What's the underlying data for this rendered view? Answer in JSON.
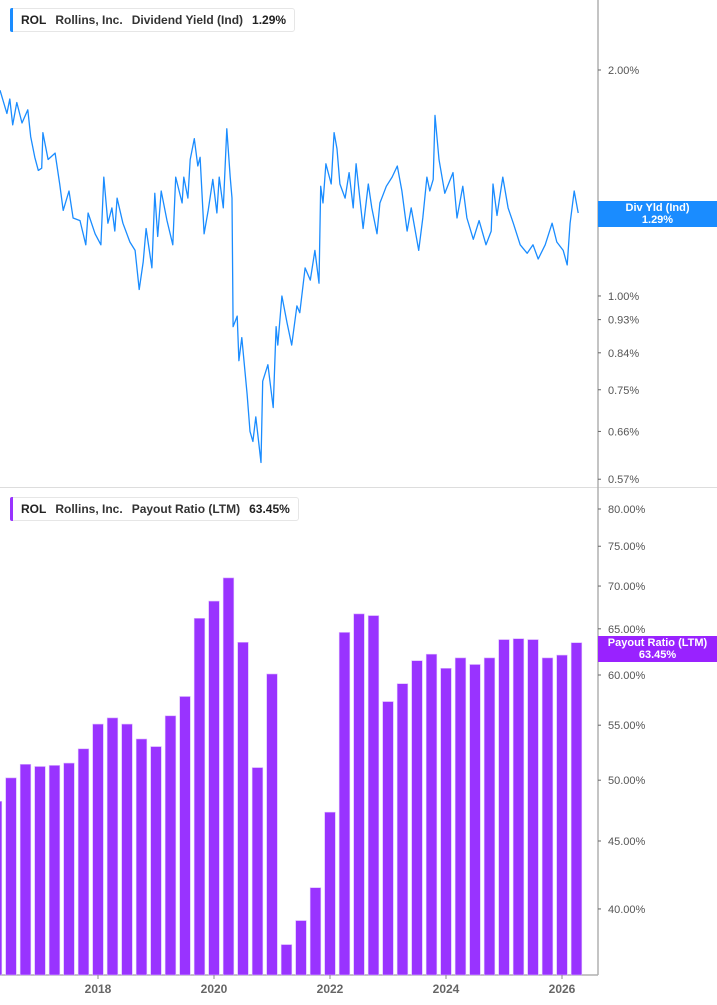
{
  "colors": {
    "dividend_yield": "#1a8cff",
    "payout_ratio": "#9933ff"
  },
  "top_legend": {
    "ticker": "ROL",
    "company": "Rollins, Inc.",
    "metric": "Dividend Yield (Ind)",
    "value": "1.29%"
  },
  "bottom_legend": {
    "ticker": "ROL",
    "company": "Rollins, Inc.",
    "metric": "Payout Ratio (LTM)",
    "value": "63.45%"
  },
  "top_tag": {
    "label": "Div Yld (Ind)",
    "value": "1.29%"
  },
  "bottom_tag": {
    "label": "Payout Ratio (LTM)",
    "value": "63.45%"
  },
  "chart_data": [
    {
      "type": "line",
      "series": [
        {
          "name": "Dividend Yield (Ind)",
          "x": [
            2016.31,
            2016.43,
            2016.48,
            2016.53,
            2016.6,
            2016.69,
            2016.79,
            2016.84,
            2016.91,
            2016.97,
            2017.03,
            2017.05,
            2017.14,
            2017.26,
            2017.34,
            2017.4,
            2017.5,
            2017.57,
            2017.69,
            2017.79,
            2017.83,
            2017.95,
            2018.05,
            2018.1,
            2018.17,
            2018.24,
            2018.29,
            2018.33,
            2018.43,
            2018.55,
            2018.64,
            2018.71,
            2018.78,
            2018.83,
            2018.93,
            2018.98,
            2019.03,
            2019.09,
            2019.19,
            2019.29,
            2019.34,
            2019.45,
            2019.48,
            2019.55,
            2019.59,
            2019.66,
            2019.72,
            2019.76,
            2019.83,
            2019.9,
            2019.98,
            2020.05,
            2020.09,
            2020.16,
            2020.22,
            2020.28,
            2020.31,
            2020.33,
            2020.4,
            2020.43,
            2020.48,
            2020.57,
            2020.62,
            2020.67,
            2020.72,
            2020.81,
            2020.84,
            2020.93,
            2021.02,
            2021.07,
            2021.1,
            2021.17,
            2021.26,
            2021.34,
            2021.43,
            2021.48,
            2021.57,
            2021.66,
            2021.74,
            2021.81,
            2021.84,
            2021.88,
            2021.93,
            2022.02,
            2022.07,
            2022.12,
            2022.17,
            2022.26,
            2022.33,
            2022.4,
            2022.45,
            2022.57,
            2022.66,
            2022.72,
            2022.81,
            2022.86,
            2022.97,
            2023.07,
            2023.16,
            2023.24,
            2023.33,
            2023.4,
            2023.53,
            2023.6,
            2023.67,
            2023.72,
            2023.78,
            2023.81,
            2023.88,
            2023.98,
            2024.12,
            2024.19,
            2024.29,
            2024.36,
            2024.47,
            2024.57,
            2024.69,
            2024.78,
            2024.81,
            2024.88,
            2024.98,
            2025.07,
            2025.16,
            2025.28,
            2025.4,
            2025.5,
            2025.59,
            2025.71,
            2025.83,
            2025.91,
            2026.02,
            2026.09,
            2026.14,
            2026.21,
            2026.28
          ],
          "values": [
            1.88,
            1.75,
            1.83,
            1.69,
            1.81,
            1.7,
            1.77,
            1.63,
            1.53,
            1.47,
            1.48,
            1.65,
            1.52,
            1.55,
            1.41,
            1.3,
            1.38,
            1.27,
            1.26,
            1.17,
            1.29,
            1.21,
            1.17,
            1.44,
            1.25,
            1.31,
            1.22,
            1.35,
            1.25,
            1.18,
            1.15,
            1.02,
            1.11,
            1.23,
            1.09,
            1.37,
            1.2,
            1.38,
            1.26,
            1.17,
            1.44,
            1.33,
            1.44,
            1.35,
            1.52,
            1.62,
            1.49,
            1.53,
            1.21,
            1.3,
            1.43,
            1.29,
            1.44,
            1.31,
            1.67,
            1.44,
            1.35,
            0.91,
            0.94,
            0.82,
            0.88,
            0.74,
            0.66,
            0.64,
            0.69,
            0.6,
            0.77,
            0.81,
            0.71,
            0.91,
            0.86,
            1.0,
            0.92,
            0.86,
            0.97,
            0.95,
            1.09,
            1.05,
            1.15,
            1.04,
            1.4,
            1.33,
            1.5,
            1.41,
            1.65,
            1.57,
            1.41,
            1.35,
            1.46,
            1.31,
            1.5,
            1.23,
            1.41,
            1.31,
            1.21,
            1.33,
            1.4,
            1.44,
            1.49,
            1.38,
            1.22,
            1.31,
            1.15,
            1.27,
            1.44,
            1.38,
            1.43,
            1.74,
            1.52,
            1.37,
            1.46,
            1.27,
            1.4,
            1.27,
            1.19,
            1.26,
            1.17,
            1.22,
            1.41,
            1.28,
            1.44,
            1.31,
            1.25,
            1.17,
            1.14,
            1.17,
            1.12,
            1.17,
            1.25,
            1.18,
            1.15,
            1.1,
            1.25,
            1.38,
            1.29
          ]
        }
      ],
      "y_scale": "log",
      "ylim": [
        0.56,
        2.5
      ],
      "y_ticks": [
        "2.00%",
        "1.00%",
        "0.93%",
        "0.84%",
        "0.75%",
        "0.66%",
        "0.57%"
      ],
      "y_tick_values": [
        2.0,
        1.0,
        0.93,
        0.84,
        0.75,
        0.66,
        0.57
      ],
      "grid": false,
      "legend": "top-left"
    },
    {
      "type": "bar",
      "series": [
        {
          "name": "Payout Ratio (LTM)",
          "x": [
            2016.25,
            2016.5,
            2016.75,
            2017.0,
            2017.25,
            2017.5,
            2017.75,
            2018.0,
            2018.25,
            2018.5,
            2018.75,
            2019.0,
            2019.25,
            2019.5,
            2019.75,
            2020.0,
            2020.25,
            2020.5,
            2020.75,
            2021.0,
            2021.25,
            2021.5,
            2021.75,
            2022.0,
            2022.25,
            2022.5,
            2022.75,
            2023.0,
            2023.25,
            2023.5,
            2023.75,
            2024.0,
            2024.25,
            2024.5,
            2024.75,
            2025.0,
            2025.25,
            2025.5,
            2025.75,
            2026.0,
            2026.25
          ],
          "values": [
            48.2,
            50.2,
            51.4,
            51.2,
            51.3,
            51.5,
            52.8,
            55.1,
            55.7,
            55.1,
            53.7,
            53.0,
            55.9,
            57.8,
            66.2,
            68.2,
            71.0,
            63.5,
            51.1,
            60.1,
            37.6,
            39.2,
            41.5,
            47.3,
            64.6,
            66.7,
            66.5,
            57.3,
            59.1,
            61.5,
            62.2,
            60.7,
            61.8,
            61.1,
            61.8,
            63.8,
            63.9,
            63.8,
            61.8,
            62.1,
            63.45
          ]
        }
      ],
      "y_scale": "log",
      "ylim": [
        35,
        82
      ],
      "y_ticks": [
        "80.00%",
        "75.00%",
        "70.00%",
        "65.00%",
        "60.00%",
        "55.00%",
        "50.00%",
        "45.00%",
        "40.00%"
      ],
      "y_tick_values": [
        80,
        75,
        70,
        65,
        60,
        55,
        50,
        45,
        40
      ],
      "x_ticks": [
        "2018",
        "2020",
        "2022",
        "2024",
        "2026"
      ],
      "x_tick_values": [
        2018,
        2020,
        2022,
        2024,
        2026
      ],
      "grid": false,
      "legend": "top-left"
    }
  ]
}
